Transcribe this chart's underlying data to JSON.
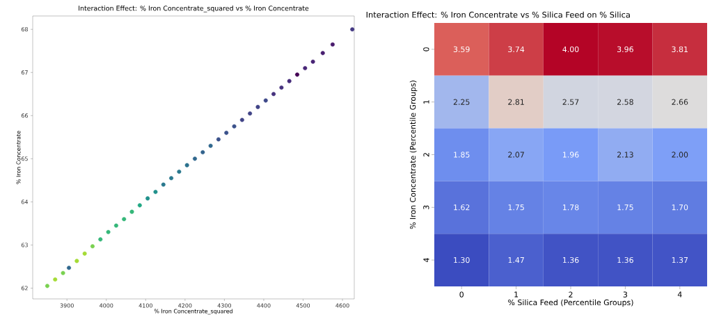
{
  "chart_data": [
    {
      "type": "scatter",
      "title": "Interaction Effect: % Iron Concentrate_squared vs % Iron Concentrate",
      "xlabel": "% Iron Concentrate_squared",
      "ylabel": "% Iron Concentrate",
      "x": [
        3850,
        3870,
        3890,
        3905,
        3925,
        3945,
        3965,
        3985,
        4005,
        4025,
        4045,
        4065,
        4085,
        4105,
        4125,
        4145,
        4165,
        4185,
        4205,
        4225,
        4245,
        4265,
        4285,
        4305,
        4325,
        4345,
        4365,
        4385,
        4405,
        4425,
        4445,
        4465,
        4485,
        4505,
        4525,
        4550,
        4575,
        4625
      ],
      "values": [
        62.05,
        62.2,
        62.35,
        62.47,
        62.63,
        62.8,
        62.97,
        63.13,
        63.3,
        63.45,
        63.6,
        63.77,
        63.92,
        64.08,
        64.23,
        64.4,
        64.55,
        64.7,
        64.85,
        65.0,
        65.15,
        65.3,
        65.45,
        65.6,
        65.75,
        65.9,
        66.05,
        66.2,
        66.35,
        66.5,
        66.65,
        66.8,
        66.95,
        67.1,
        67.25,
        67.45,
        67.65,
        68.0
      ],
      "colors": [
        "#7ad151",
        "#a5db36",
        "#7ad151",
        "#31688e",
        "#a5db36",
        "#a5db36",
        "#7ad151",
        "#35b779",
        "#35b779",
        "#35b779",
        "#35b779",
        "#35b779",
        "#22a884",
        "#21918c",
        "#21918c",
        "#2a788e",
        "#2a788e",
        "#2a788e",
        "#2c728e",
        "#31688e",
        "#33638d",
        "#31688e",
        "#3b528b",
        "#3b528b",
        "#3b528b",
        "#414487",
        "#414487",
        "#414487",
        "#3e4989",
        "#46327e",
        "#46327e",
        "#472d7b",
        "#440154",
        "#482677",
        "#482475",
        "#481f70",
        "#481a6c",
        "#443983"
      ],
      "xlim": [
        3813,
        4630
      ],
      "ylim": [
        61.75,
        68.31
      ],
      "xticks": [
        3900,
        4000,
        4100,
        4200,
        4300,
        4400,
        4500,
        4600
      ],
      "yticks": [
        62,
        63,
        64,
        65,
        66,
        67,
        68
      ],
      "marker": "circle"
    },
    {
      "type": "heatmap",
      "title": "Interaction Effect: % Iron Concentrate vs % Silica Feed on % Silica",
      "xlabel": "% Silica Feed (Percentile Groups)",
      "ylabel": "% Iron Concentrate (Percentile Groups)",
      "categories": [
        "0",
        "1",
        "2",
        "3",
        "4"
      ],
      "y_categories": [
        "0",
        "1",
        "2",
        "3",
        "4"
      ],
      "cells": [
        [
          3.59,
          3.74,
          4.0,
          3.96,
          3.81
        ],
        [
          2.25,
          2.81,
          2.57,
          2.58,
          2.66
        ],
        [
          1.85,
          2.07,
          1.96,
          2.13,
          2.0
        ],
        [
          1.62,
          1.75,
          1.78,
          1.75,
          1.7
        ],
        [
          1.3,
          1.47,
          1.36,
          1.36,
          1.37
        ]
      ],
      "cell_labels": [
        [
          "3.59",
          "3.74",
          "4.00",
          "3.96",
          "3.81"
        ],
        [
          "2.25",
          "2.81",
          "2.57",
          "2.58",
          "2.66"
        ],
        [
          "1.85",
          "2.07",
          "1.96",
          "2.13",
          "2.00"
        ],
        [
          "1.62",
          "1.75",
          "1.78",
          "1.75",
          "1.70"
        ],
        [
          "1.30",
          "1.47",
          "1.36",
          "1.36",
          "1.37"
        ]
      ]
    }
  ]
}
